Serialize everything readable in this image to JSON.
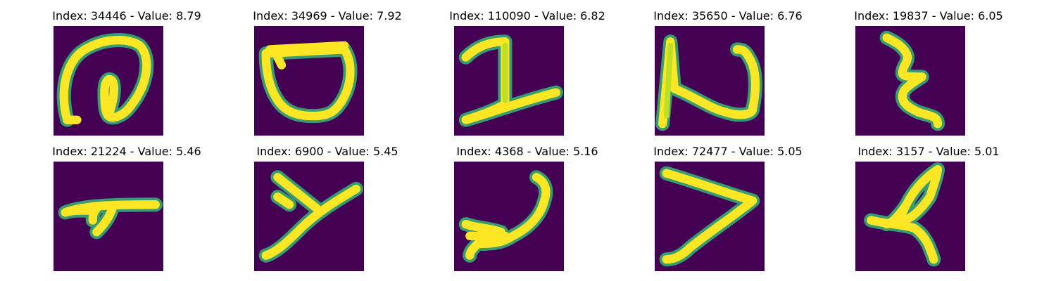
{
  "colors": {
    "background": "#440154",
    "stroke": "#fde725",
    "edge": "#35b779",
    "mid": "#bddf26"
  },
  "panels": [
    {
      "title": "Index: 34446 - Value: 8.79",
      "glyph": "digit-zero-loop"
    },
    {
      "title": "Index: 34969 - Value: 7.92",
      "glyph": "loop-shape"
    },
    {
      "title": "Index: 110090 - Value: 6.82",
      "glyph": "two-like-shape"
    },
    {
      "title": "Index: 35650 - Value: 6.76",
      "glyph": "n-like-shape"
    },
    {
      "title": "Index: 19837 - Value: 6.05",
      "glyph": "zigzag-shape"
    },
    {
      "title": "Index: 21224 - Value: 5.46",
      "glyph": "t-like-shape"
    },
    {
      "title": "Index: 6900 - Value: 5.45",
      "glyph": "y-like-shape"
    },
    {
      "title": "Index: 4368 - Value: 5.16",
      "glyph": "hook-shape"
    },
    {
      "title": "Index: 72477 - Value: 5.05",
      "glyph": "greater-than-shape"
    },
    {
      "title": "Index: 3157 - Value: 5.01",
      "glyph": "loop-cross-shape"
    }
  ]
}
